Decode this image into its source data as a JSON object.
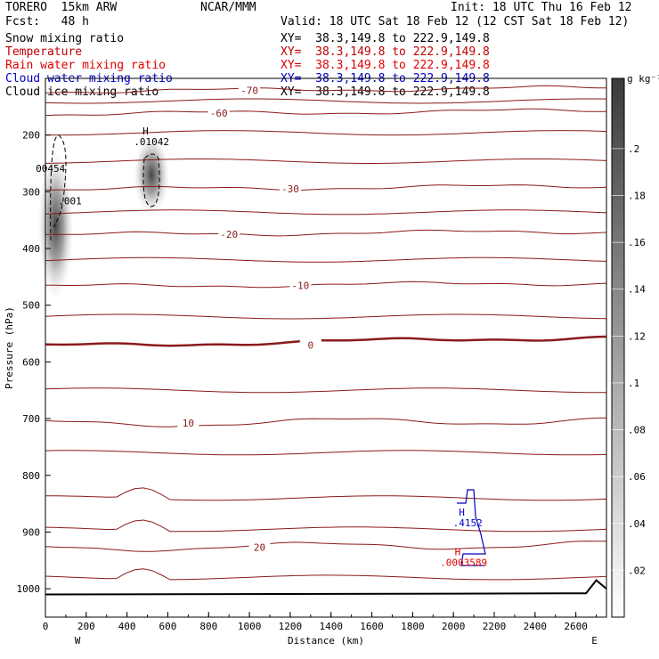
{
  "header": {
    "model": "TORERO  15km ARW",
    "center": "NCAR/MMM",
    "init": "Init: 18 UTC Thu 16 Feb 12",
    "fcst": "Fcst:   48 h",
    "valid": "Valid: 18 UTC Sat 18 Feb 12 (12 CST Sat 18 Feb 12)"
  },
  "legend": [
    {
      "label": "Snow mixing ratio",
      "xy": "XY=  38.3,149.8 to 222.9,149.8",
      "color": "#000000"
    },
    {
      "label": "Temperature",
      "xy": "XY=  38.3,149.8 to 222.9,149.8",
      "color": "#c00000"
    },
    {
      "label": "Rain water mixing ratio",
      "xy": "XY=  38.3,149.8 to 222.9,149.8",
      "color": "#e00000"
    },
    {
      "label": "Cloud water mixing ratio",
      "xy": "XY=  38.3,149.8 to 222.9,149.8",
      "color": "#0000c0"
    },
    {
      "label": "Cloud ice mixing ratio",
      "xy": "XY=  38.3,149.8 to 222.9,149.8",
      "color": "#000000"
    }
  ],
  "colors": {
    "temperature": "#8b1a1a",
    "rain": "#e00000",
    "cloudwater": "#0000c0",
    "ice": "#000000"
  },
  "chart_data": {
    "type": "cross-section",
    "xlabel": "Distance (km)",
    "ylabel": "Pressure (hPa)",
    "xlim": [
      0,
      2750
    ],
    "ylim": [
      1050,
      100
    ],
    "xticks": [
      0,
      200,
      400,
      600,
      800,
      1000,
      1200,
      1400,
      1600,
      1800,
      2000,
      2200,
      2400,
      2600
    ],
    "yticks": [
      200,
      300,
      400,
      500,
      600,
      700,
      800,
      900,
      1000
    ],
    "x_end_labels": {
      "left": "W",
      "right": "E"
    },
    "colorbar": {
      "unit": "g kg⁻¹",
      "ticks": [
        ".02",
        ".04",
        ".06",
        ".08",
        ".1",
        ".12",
        ".14",
        ".16",
        ".18",
        ".2"
      ],
      "range": [
        0,
        0.23
      ]
    },
    "temperature_contours": [
      {
        "level": -70,
        "pressure": 123,
        "label": "-70",
        "label_x": 1000
      },
      {
        "level": -60,
        "pressure": 163,
        "label": "-60",
        "label_x": 850
      },
      {
        "level": -30,
        "pressure": 296,
        "label": "-30",
        "label_x": 1200
      },
      {
        "level": -20,
        "pressure": 376,
        "label": "-20",
        "label_x": 900
      },
      {
        "level": -10,
        "pressure": 467,
        "label": "-10",
        "label_x": 1250
      },
      {
        "level": 0,
        "pressure": 572,
        "label": "0",
        "label_x": 1300
      },
      {
        "level": 10,
        "pressure": 709,
        "label": "10",
        "label_x": 700
      },
      {
        "level": 20,
        "pressure": 928,
        "label": "20",
        "label_x": 1050
      }
    ],
    "extrema": [
      {
        "type": "H",
        "value": ".01042",
        "x": 520,
        "pressure": 218,
        "field": "ice"
      },
      {
        "type": "",
        "value": "00454",
        "x": 25,
        "pressure": 265,
        "field": "ice"
      },
      {
        "type": "",
        "value": ".001",
        "x": 120,
        "pressure": 322,
        "field": "snow"
      },
      {
        "type": "H",
        "value": ".4152",
        "x": 2070,
        "pressure": 890,
        "field": "cloudwater"
      },
      {
        "type": "H",
        "value": ".0003589",
        "x": 2050,
        "pressure": 960,
        "field": "rain"
      }
    ],
    "snow_shading": [
      {
        "x": 50,
        "p_top": 230,
        "p_bot": 490,
        "max": 0.22
      },
      {
        "x": 520,
        "p_top": 200,
        "p_bot": 340,
        "max": 0.2
      }
    ]
  }
}
